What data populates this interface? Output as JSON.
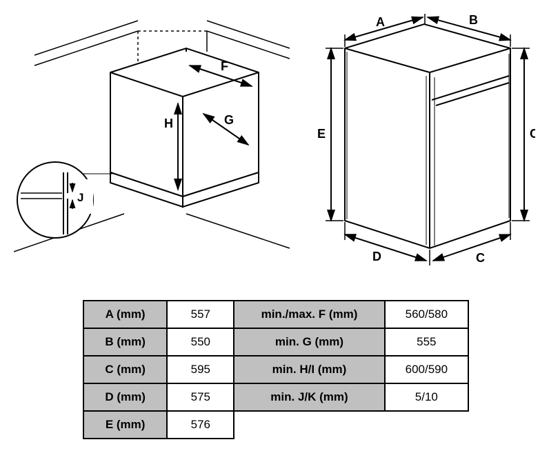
{
  "diagram": {
    "labels": {
      "A": "A",
      "B": "B",
      "C_right": "C",
      "C_bottom": "C",
      "D": "D",
      "E": "E",
      "F": "F",
      "G": "G",
      "H": "H",
      "J": "J"
    },
    "colors": {
      "stroke": "#000000",
      "background": "#ffffff",
      "detail_fill": "#ffffff"
    },
    "stroke_width": 2,
    "thin_stroke_width": 1,
    "font_size": 18,
    "font_weight": "bold"
  },
  "table": {
    "rows": [
      {
        "label1": "A (mm)",
        "value1": "557",
        "label2": "min./max. F (mm)",
        "value2": "560/580"
      },
      {
        "label1": "B (mm)",
        "value1": "550",
        "label2": "min. G (mm)",
        "value2": "555"
      },
      {
        "label1": "C (mm)",
        "value1": "595",
        "label2": "min. H/I (mm)",
        "value2": "600/590"
      },
      {
        "label1": "D (mm)",
        "value1": "575",
        "label2": "min. J/K (mm)",
        "value2": "5/10"
      },
      {
        "label1": "E (mm)",
        "value1": "576",
        "label2": "",
        "value2": ""
      }
    ],
    "header_bg": "#c0c0c0",
    "value_bg": "#ffffff",
    "border_color": "#000000",
    "font_size": 17
  }
}
